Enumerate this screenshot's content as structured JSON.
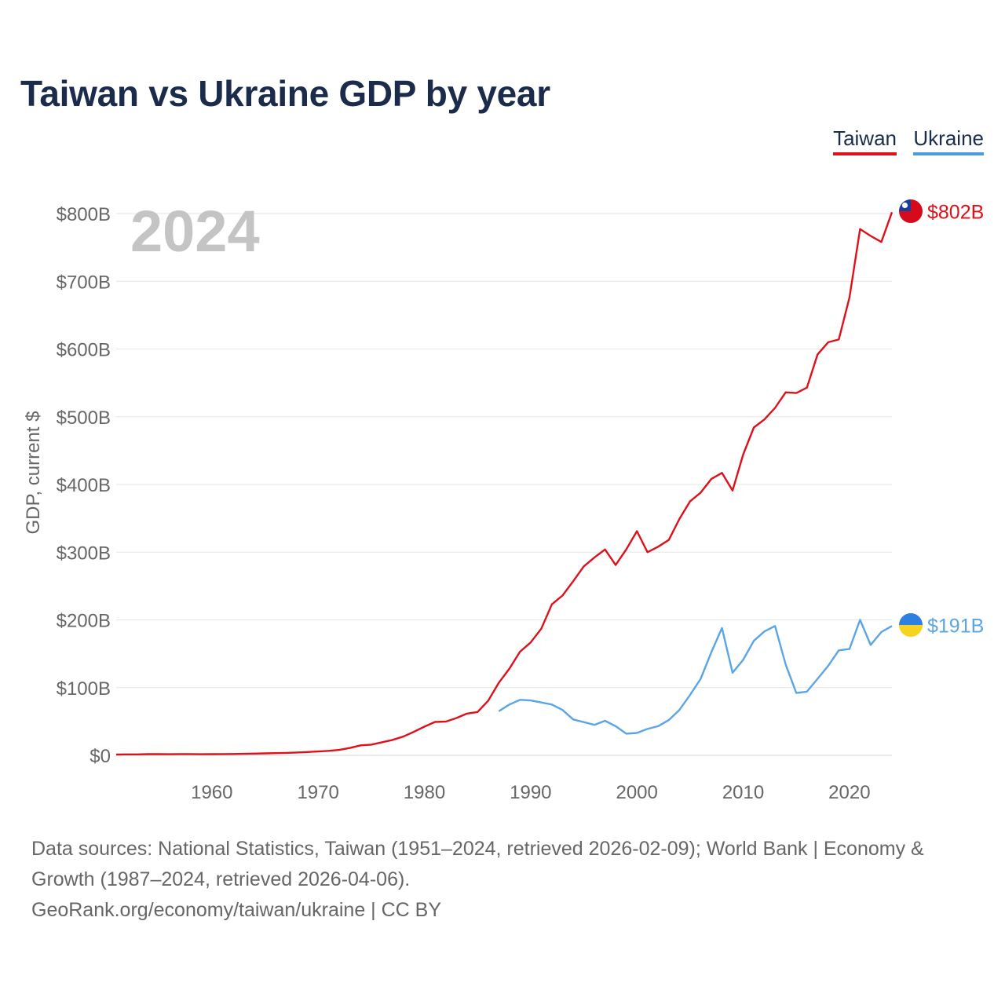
{
  "title": "Taiwan vs Ukraine GDP by year",
  "legend": {
    "taiwan": "Taiwan",
    "ukraine": "Ukraine"
  },
  "colors": {
    "taiwan": "#e0101a",
    "ukraine": "#5aa5e6",
    "title": "#1b2b4b",
    "grid": "#e6e6e6",
    "axis_text": "#666666",
    "year_watermark": "#c4c4c4"
  },
  "footer": {
    "sources": "Data sources: National Statistics, Taiwan (1951–2024, retrieved 2026-02-09); World Bank | Economy & Growth (1987–2024, retrieved 2026-04-06).",
    "site": "GeoRank.org/economy/taiwan/ukraine | CC BY"
  },
  "chart_data": {
    "type": "line",
    "title": "Taiwan vs Ukraine GDP by year",
    "ylabel": "GDP, current $",
    "xlabel": "",
    "year_label": "2024",
    "xlim": [
      1951,
      2024
    ],
    "ylim": [
      0,
      800
    ],
    "y_unit": "billions of current US$",
    "y_ticks": [
      0,
      100,
      200,
      300,
      400,
      500,
      600,
      700,
      800
    ],
    "y_tick_labels": [
      "$0",
      "$100B",
      "$200B",
      "$300B",
      "$400B",
      "$500B",
      "$600B",
      "$700B",
      "$800B"
    ],
    "x_ticks": [
      1960,
      1970,
      1980,
      1990,
      2000,
      2010,
      2020
    ],
    "x_tick_labels": [
      "1960",
      "1970",
      "1980",
      "1990",
      "2000",
      "2010",
      "2020"
    ],
    "grid": true,
    "series": [
      {
        "name": "Taiwan",
        "color": "#e0101a",
        "end_label": "$802B",
        "x": [
          1951,
          1952,
          1953,
          1954,
          1955,
          1956,
          1957,
          1958,
          1959,
          1960,
          1961,
          1962,
          1963,
          1964,
          1965,
          1966,
          1967,
          1968,
          1969,
          1970,
          1971,
          1972,
          1973,
          1974,
          1975,
          1976,
          1977,
          1978,
          1979,
          1980,
          1981,
          1982,
          1983,
          1984,
          1985,
          1986,
          1987,
          1988,
          1989,
          1990,
          1991,
          1992,
          1993,
          1994,
          1995,
          1996,
          1997,
          1998,
          1999,
          2000,
          2001,
          2002,
          2003,
          2004,
          2005,
          2006,
          2007,
          2008,
          2009,
          2010,
          2011,
          2012,
          2013,
          2014,
          2015,
          2016,
          2017,
          2018,
          2019,
          2020,
          2021,
          2022,
          2023,
          2024
        ],
        "values": [
          1.2,
          1.4,
          1.4,
          1.7,
          1.9,
          1.6,
          1.8,
          1.9,
          1.6,
          1.7,
          1.8,
          2.0,
          2.2,
          2.6,
          2.9,
          3.2,
          3.6,
          4.2,
          4.9,
          5.7,
          6.6,
          8.0,
          10.9,
          14.7,
          15.8,
          19.2,
          22.7,
          27.6,
          34.7,
          42.3,
          49.3,
          49.7,
          55.0,
          61.6,
          64.0,
          80.5,
          107.0,
          128.0,
          153.0,
          166.6,
          187.0,
          223.0,
          236.0,
          257.0,
          279.0,
          292.0,
          304.0,
          281.0,
          304.0,
          331.0,
          300.0,
          308.0,
          318.0,
          349.0,
          375.0,
          388.0,
          408.0,
          417.0,
          391.0,
          444.0,
          484.0,
          496.0,
          513.0,
          536.0,
          535.0,
          543.0,
          592.0,
          610.0,
          614.0,
          676.0,
          777.0,
          767.0,
          758.0,
          802.0
        ]
      },
      {
        "name": "Ukraine",
        "color": "#5aa5e6",
        "end_label": "$191B",
        "x": [
          1987,
          1988,
          1989,
          1990,
          1991,
          1992,
          1993,
          1994,
          1995,
          1996,
          1997,
          1998,
          1999,
          2000,
          2001,
          2002,
          2003,
          2004,
          2005,
          2006,
          2007,
          2008,
          2009,
          2010,
          2011,
          2012,
          2013,
          2014,
          2015,
          2016,
          2017,
          2018,
          2019,
          2020,
          2021,
          2022,
          2023,
          2024
        ],
        "values": [
          65.0,
          75.0,
          82.0,
          81.0,
          78.0,
          75.0,
          67.0,
          53.0,
          49.0,
          45.0,
          51.0,
          43.0,
          32.0,
          33.0,
          39.0,
          43.0,
          52.0,
          67.0,
          89.0,
          113.0,
          152.0,
          188.0,
          122.0,
          141.0,
          169.0,
          183.0,
          191.0,
          134.0,
          92.0,
          94.0,
          113.0,
          132.0,
          155.0,
          157.0,
          200.0,
          163.0,
          182.0,
          191.0
        ]
      }
    ]
  }
}
